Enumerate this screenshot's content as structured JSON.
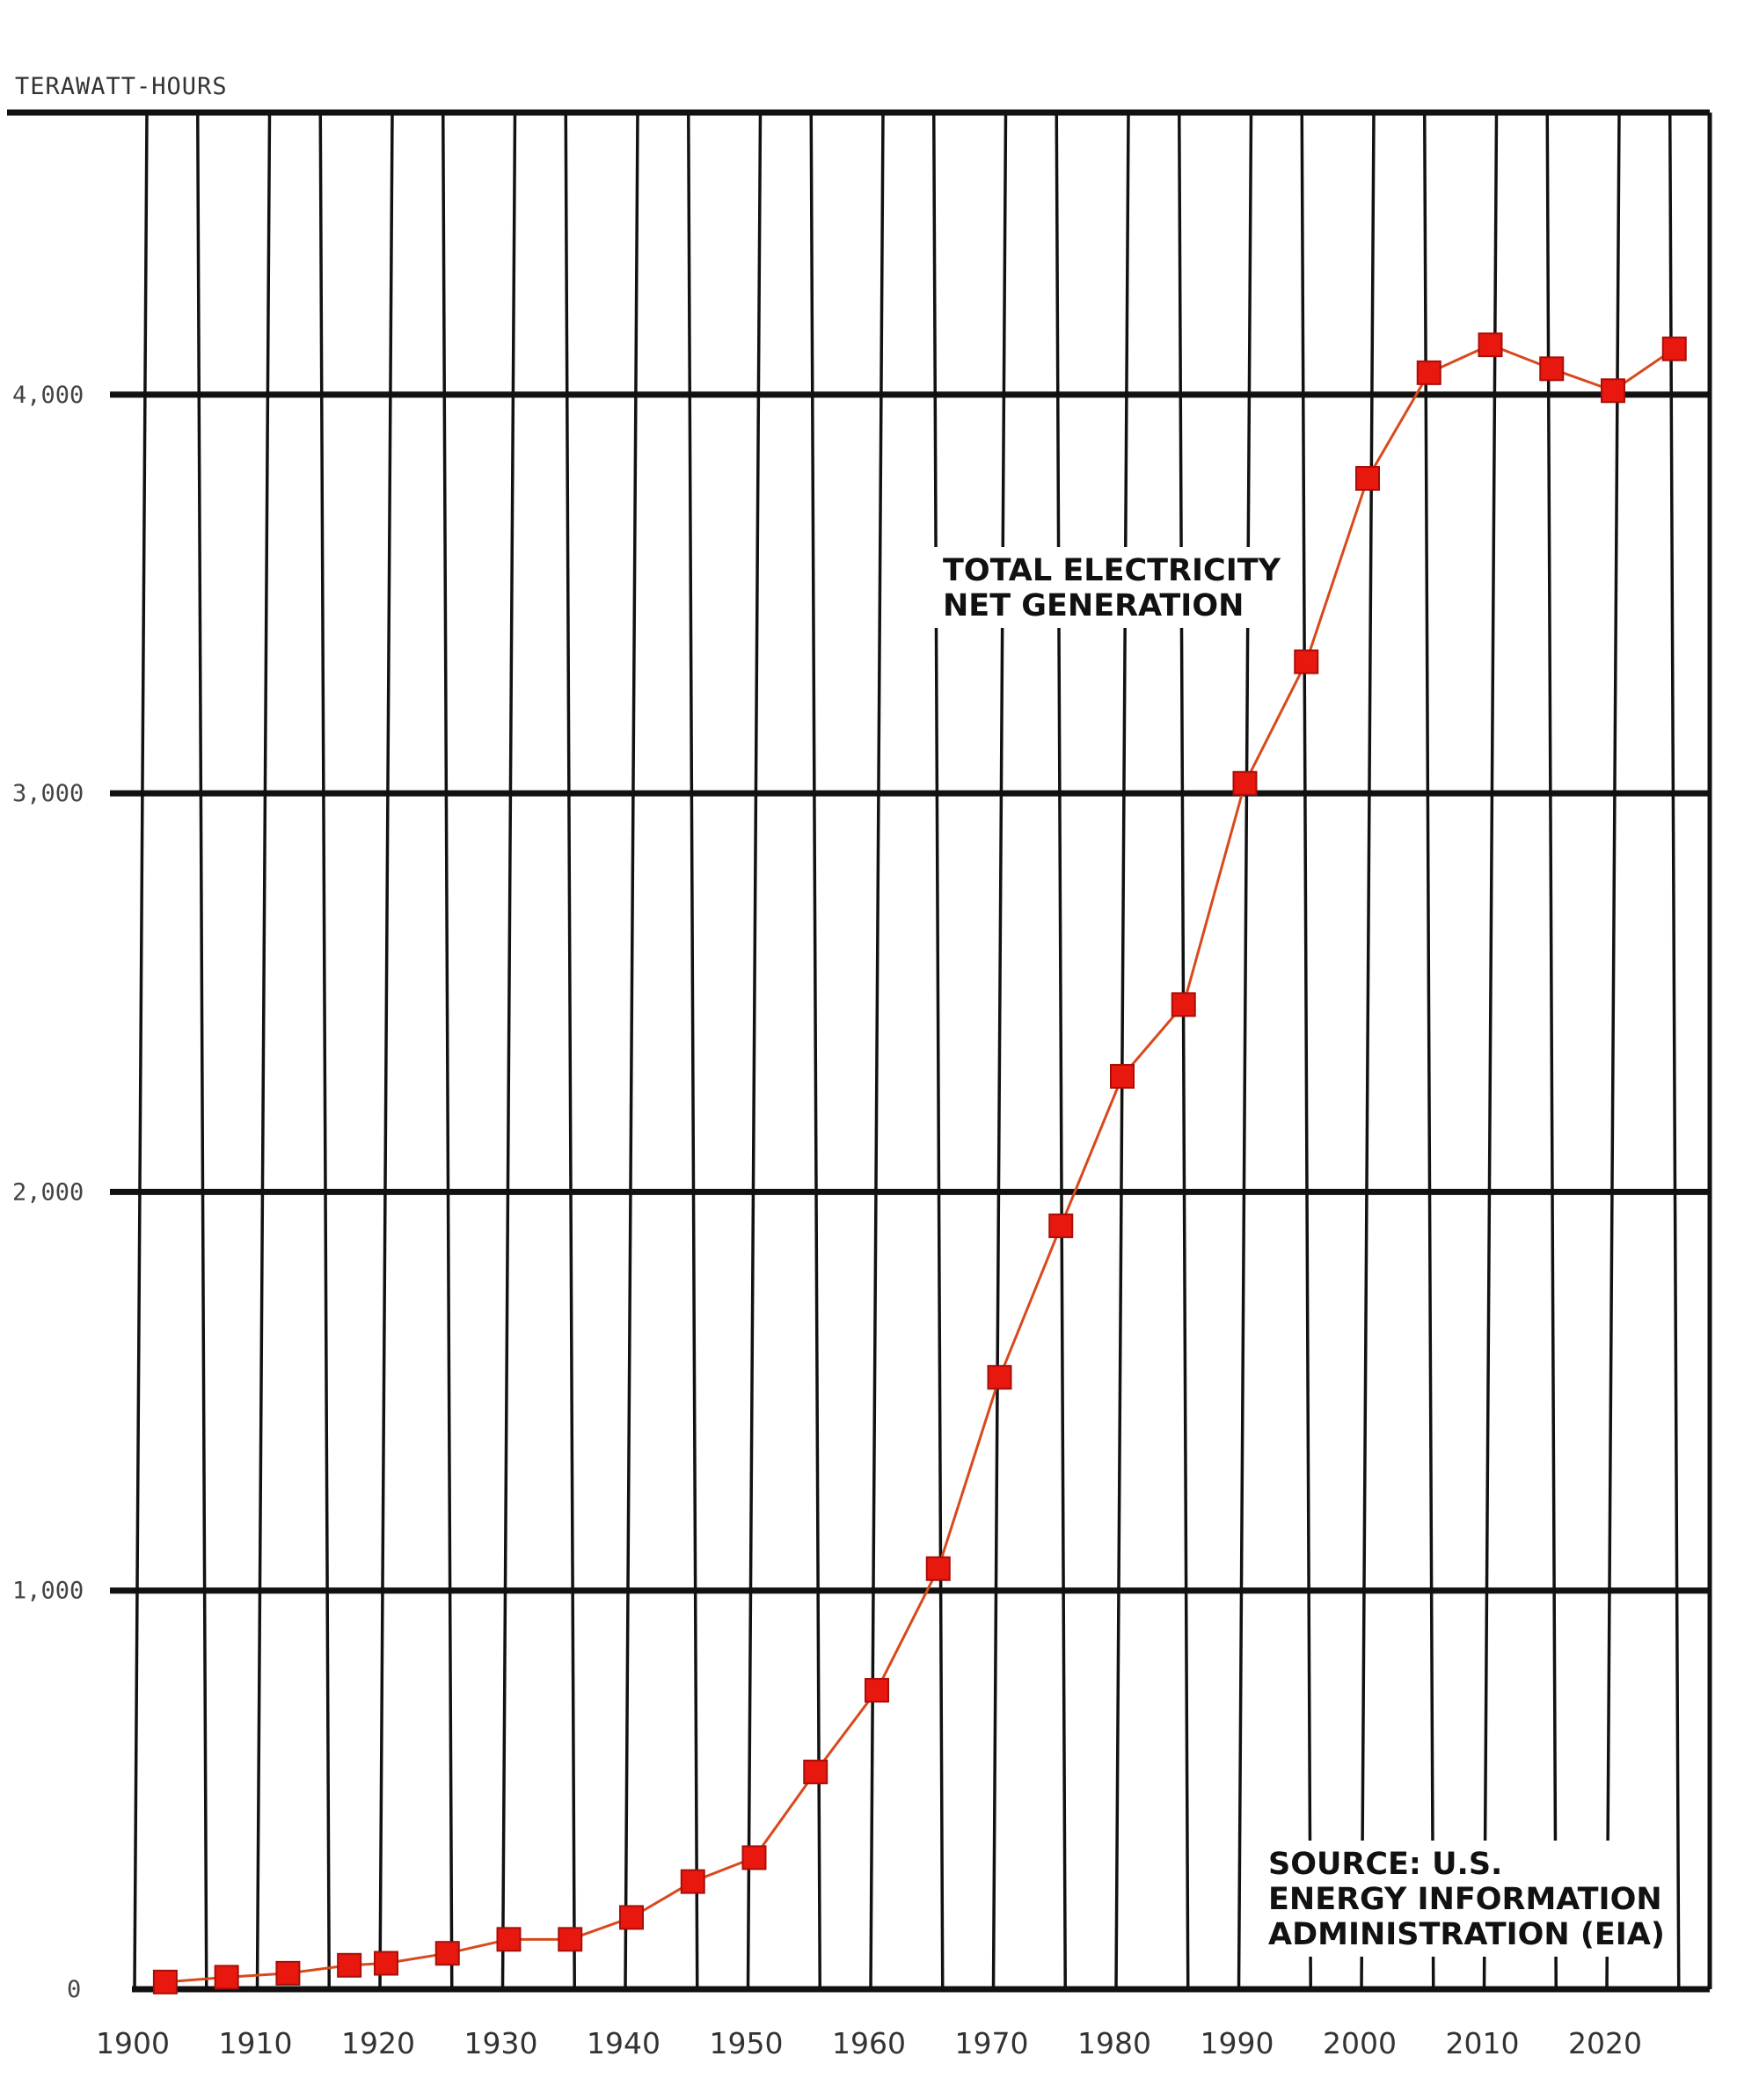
{
  "chart_data": {
    "type": "line",
    "title": "",
    "ylabel": "TERAWATT-HOURS",
    "xlabel": "",
    "xlim": [
      1900,
      2027
    ],
    "ylim": [
      0,
      4700
    ],
    "x_ticks": [
      1900,
      1910,
      1920,
      1930,
      1940,
      1950,
      1960,
      1970,
      1980,
      1990,
      2000,
      2010,
      2020
    ],
    "x_tick_labels": [
      "1900",
      "1910",
      "1920",
      "1930",
      "1940",
      "1950",
      "1960",
      "1970",
      "1980",
      "1990",
      "2000",
      "2010",
      "2020"
    ],
    "y_ticks": [
      0,
      1000,
      2000,
      3000,
      4000
    ],
    "y_tick_labels": [
      "0",
      "1,000",
      "2,000",
      "3,000",
      "4,000"
    ],
    "grid": true,
    "series": [
      {
        "color": "#e8180e",
        "line_color": "#d8491c",
        "marker": "square",
        "x": [
          1902,
          1907,
          1912,
          1917,
          1920,
          1925,
          1930,
          1935,
          1940,
          1945,
          1950,
          1955,
          1960,
          1965,
          1970,
          1975,
          1980,
          1985,
          1990,
          1995,
          2000,
          2005,
          2010,
          2015,
          2020,
          2025
        ],
        "y": [
          18,
          30,
          40,
          60,
          65,
          90,
          125,
          125,
          180,
          270,
          330,
          545,
          750,
          1055,
          1535,
          1915,
          2290,
          2470,
          3025,
          3330,
          3790,
          4055,
          4125,
          4065,
          4010,
          4115
        ]
      }
    ],
    "annotations": [
      {
        "lines": [
          "TOTAL ELECTRICITY",
          "NET GENERATION"
        ]
      },
      {
        "lines": [
          "SOURCE: U.S.",
          "ENERGY INFORMATION",
          "ADMINISTRATION (EIA)"
        ]
      }
    ]
  }
}
